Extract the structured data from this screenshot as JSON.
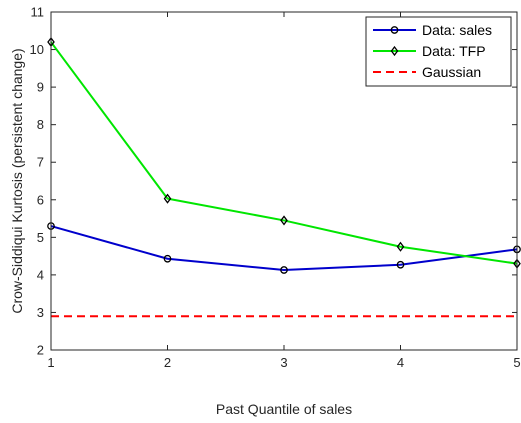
{
  "chart_data": {
    "type": "line",
    "title": "",
    "xlabel": "Past Quantile of sales",
    "ylabel": "Crow-Siddiqui Kurtosis (persistent change)",
    "xlim": [
      1,
      5
    ],
    "ylim": [
      2,
      11
    ],
    "xticks": [
      1,
      2,
      3,
      4,
      5
    ],
    "yticks": [
      2,
      3,
      4,
      5,
      6,
      7,
      8,
      9,
      10,
      11
    ],
    "grid": false,
    "legend_position": "top-right",
    "x": [
      1,
      2,
      3,
      4,
      5
    ],
    "series": [
      {
        "name": "Data: sales",
        "values": [
          5.3,
          4.43,
          4.13,
          4.27,
          4.68
        ],
        "color": "#0000cc",
        "line_style": "solid",
        "marker": "circle"
      },
      {
        "name": "Data: TFP",
        "values": [
          10.2,
          6.03,
          5.45,
          4.75,
          4.3
        ],
        "color": "#00e600",
        "line_style": "solid",
        "marker": "diamond"
      },
      {
        "name": "Gaussian",
        "values": [
          2.9,
          2.9,
          2.9,
          2.9,
          2.9
        ],
        "color": "#ff0000",
        "line_style": "dashed",
        "marker": "none"
      }
    ]
  }
}
